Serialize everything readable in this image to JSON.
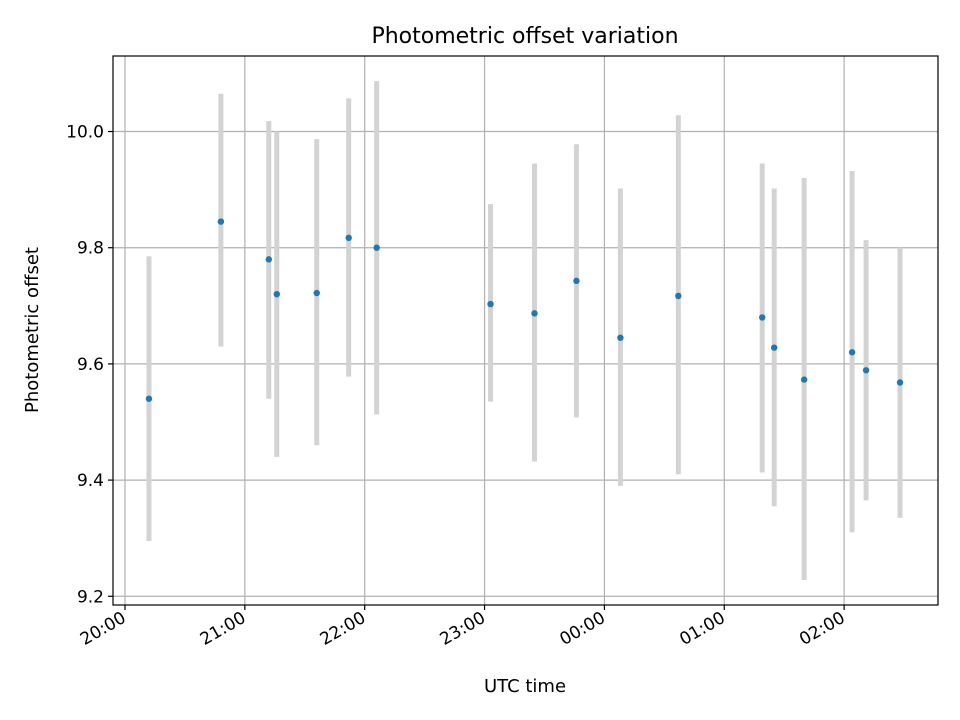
{
  "chart_data": {
    "type": "scatter",
    "title": "Photometric offset variation",
    "xlabel": "UTC time",
    "ylabel": "Photometric offset",
    "x_ticks": [
      "20:00",
      "21:00",
      "22:00",
      "23:00",
      "00:00",
      "01:00",
      "02:00"
    ],
    "y_ticks": [
      "9.2",
      "9.4",
      "9.6",
      "9.8",
      "10.0"
    ],
    "ylim": [
      9.185,
      10.13
    ],
    "xlim_minutes_from_2000": [
      -6,
      407
    ],
    "grid": true,
    "points": [
      {
        "x": "20:12",
        "y": 9.54,
        "y_err_low": 9.295,
        "y_err_high": 9.785
      },
      {
        "x": "20:48",
        "y": 9.845,
        "y_err_low": 9.63,
        "y_err_high": 10.065
      },
      {
        "x": "21:12",
        "y": 9.78,
        "y_err_low": 9.54,
        "y_err_high": 10.018
      },
      {
        "x": "21:16",
        "y": 9.72,
        "y_err_low": 9.44,
        "y_err_high": 10.0
      },
      {
        "x": "21:36",
        "y": 9.722,
        "y_err_low": 9.46,
        "y_err_high": 9.987
      },
      {
        "x": "21:52",
        "y": 9.817,
        "y_err_low": 9.578,
        "y_err_high": 10.057
      },
      {
        "x": "22:06",
        "y": 9.8,
        "y_err_low": 9.513,
        "y_err_high": 10.087
      },
      {
        "x": "23:03",
        "y": 9.703,
        "y_err_low": 9.535,
        "y_err_high": 9.875
      },
      {
        "x": "23:25",
        "y": 9.687,
        "y_err_low": 9.432,
        "y_err_high": 9.945
      },
      {
        "x": "23:46",
        "y": 9.743,
        "y_err_low": 9.508,
        "y_err_high": 9.978
      },
      {
        "x": "00:08",
        "y": 9.645,
        "y_err_low": 9.39,
        "y_err_high": 9.902
      },
      {
        "x": "00:37",
        "y": 9.717,
        "y_err_low": 9.41,
        "y_err_high": 10.028
      },
      {
        "x": "01:19",
        "y": 9.68,
        "y_err_low": 9.413,
        "y_err_high": 9.945
      },
      {
        "x": "01:25",
        "y": 9.628,
        "y_err_low": 9.355,
        "y_err_high": 9.902
      },
      {
        "x": "01:40",
        "y": 9.573,
        "y_err_low": 9.228,
        "y_err_high": 9.92
      },
      {
        "x": "02:04",
        "y": 9.62,
        "y_err_low": 9.31,
        "y_err_high": 9.932
      },
      {
        "x": "02:11",
        "y": 9.589,
        "y_err_low": 9.365,
        "y_err_high": 9.813
      },
      {
        "x": "02:28",
        "y": 9.568,
        "y_err_low": 9.335,
        "y_err_high": 9.8
      }
    ],
    "colors": {
      "point": "#1f77b4",
      "errorbar": "#d3d3d3",
      "grid": "#b0b0b0",
      "axis": "#000000"
    }
  }
}
